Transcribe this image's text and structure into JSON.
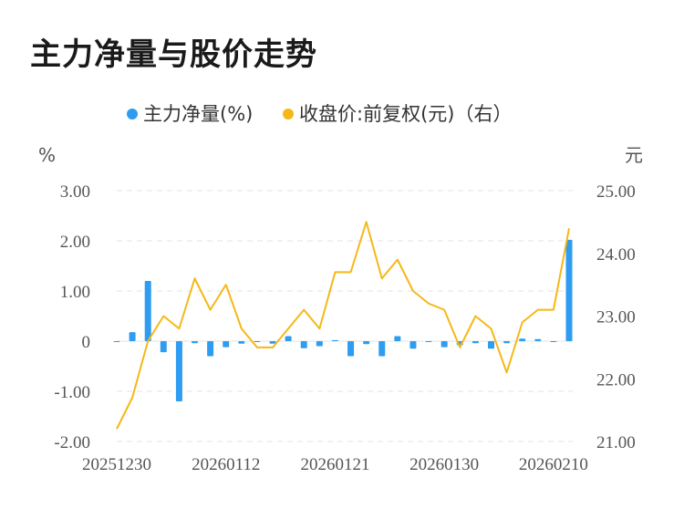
{
  "title": "主力净量与股价走势",
  "chart_data": {
    "type": "bar+line",
    "legend": [
      {
        "name": "主力净量(%)",
        "color": "#2e9cf0"
      },
      {
        "name": "收盘价:前复权(元)（右）",
        "color": "#f5b818"
      }
    ],
    "y_left": {
      "unit": "%",
      "ticks": [
        "3.00",
        "2.00",
        "1.00",
        "0",
        "-1.00",
        "-2.00"
      ],
      "range": [
        -2,
        3
      ]
    },
    "y_right": {
      "unit": "元",
      "ticks": [
        "25.00",
        "24.00",
        "23.00",
        "22.00",
        "21.00"
      ],
      "range": [
        21,
        25
      ]
    },
    "x_ticks": [
      {
        "label": "20251230",
        "index": 0
      },
      {
        "label": "20260112",
        "index": 7
      },
      {
        "label": "20260121",
        "index": 14
      },
      {
        "label": "20260130",
        "index": 21
      },
      {
        "label": "20260210",
        "index": 28
      }
    ],
    "bars": [
      0,
      0.18,
      1.2,
      -0.22,
      -1.2,
      -0.04,
      -0.3,
      -0.12,
      -0.05,
      0,
      -0.05,
      0.1,
      -0.14,
      -0.1,
      0.02,
      -0.3,
      -0.06,
      -0.3,
      0.1,
      -0.15,
      0,
      -0.12,
      -0.08,
      -0.04,
      -0.15,
      -0.04,
      0.05,
      0.04,
      0,
      2.02
    ],
    "line": [
      21.2,
      21.7,
      22.6,
      23.0,
      22.8,
      23.6,
      23.1,
      23.5,
      22.8,
      22.5,
      22.5,
      22.8,
      23.1,
      22.8,
      23.7,
      23.7,
      24.5,
      23.6,
      23.9,
      23.4,
      23.2,
      23.1,
      22.5,
      23.0,
      22.8,
      22.1,
      22.9,
      23.1,
      23.1,
      24.4
    ]
  }
}
